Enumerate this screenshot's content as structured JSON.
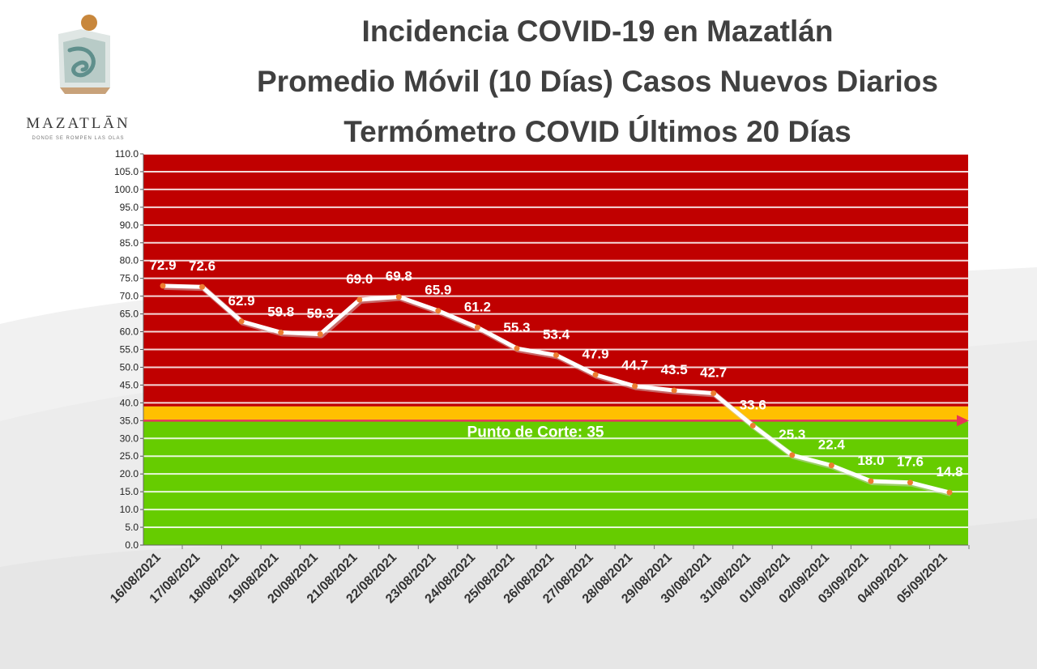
{
  "header": {
    "title_line1": "Incidencia COVID-19 en Mazatlán",
    "title_line2": "Promedio Móvil (10 Días) Casos Nuevos Diarios",
    "title_line3": "Termómetro COVID Últimos 20 Días"
  },
  "logo": {
    "wordmark": "MAZATLĀN",
    "tagline": "DONDE SE ROMPEN LAS OLAS"
  },
  "colors": {
    "danger_zone": "#c00000",
    "warning_band": "#ffc000",
    "safe_zone": "#66cc00",
    "line": "#ffffff",
    "marker": "#ed7d31",
    "cut_arrow": "#e8335a",
    "title": "#404040"
  },
  "chart_data": {
    "type": "line",
    "title": "",
    "xlabel": "",
    "ylabel": "",
    "ylim": [
      0,
      110
    ],
    "ytick_step": 5,
    "ytick_labels": [
      "0.0",
      "5.0",
      "10.0",
      "15.0",
      "20.0",
      "25.0",
      "30.0",
      "35.0",
      "40.0",
      "45.0",
      "50.0",
      "55.0",
      "60.0",
      "65.0",
      "70.0",
      "75.0",
      "80.0",
      "85.0",
      "90.0",
      "95.0",
      "100.0",
      "105.0",
      "110.0"
    ],
    "categories": [
      "16/08/2021",
      "17/08/2021",
      "18/08/2021",
      "19/08/2021",
      "20/08/2021",
      "21/08/2021",
      "22/08/2021",
      "23/08/2021",
      "24/08/2021",
      "25/08/2021",
      "26/08/2021",
      "27/08/2021",
      "28/08/2021",
      "29/08/2021",
      "30/08/2021",
      "31/08/2021",
      "01/09/2021",
      "02/09/2021",
      "03/09/2021",
      "04/09/2021",
      "05/09/2021"
    ],
    "values": [
      72.9,
      72.6,
      62.9,
      59.8,
      59.3,
      69.0,
      69.8,
      65.9,
      61.2,
      55.3,
      53.4,
      47.9,
      44.7,
      43.5,
      42.7,
      33.6,
      25.3,
      22.4,
      18.0,
      17.6,
      14.8
    ],
    "data_labels": [
      "72.9",
      "72.6",
      "62.9",
      "59.8",
      "59.3",
      "69.0",
      "69.8",
      "65.9",
      "61.2",
      "55.3",
      "53.4",
      "47.9",
      "44.7",
      "43.5",
      "42.7",
      "33.6",
      "25.3",
      "22.4",
      "18.0",
      "17.6",
      "14.8"
    ],
    "zones": [
      {
        "from": 0,
        "to": 35,
        "color": "#66cc00"
      },
      {
        "from": 35,
        "to": 39,
        "color": "#ffc000"
      },
      {
        "from": 39,
        "to": 110,
        "color": "#c00000"
      }
    ],
    "cut_line": {
      "value": 35,
      "label": "Punto de Corte: 35"
    },
    "grid": true,
    "legend": "none"
  }
}
